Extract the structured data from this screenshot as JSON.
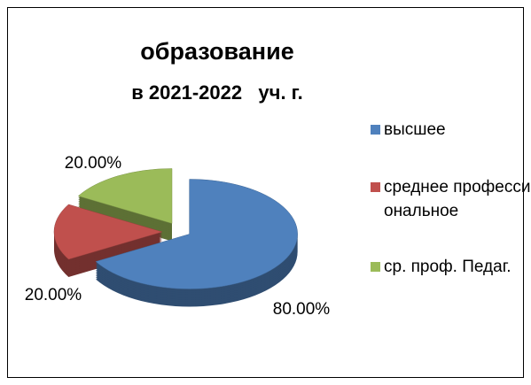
{
  "chart_data": {
    "type": "pie3d",
    "title": "образование",
    "subtitle": "в 2021-2022   уч. г.",
    "series": [
      {
        "name": "высшее",
        "color": "#4f81bd",
        "values": [
          80
        ],
        "value_labels": [
          "80.00%"
        ]
      },
      {
        "name": "среднее профессиональное",
        "color": "#c0504d",
        "values": [
          20
        ],
        "value_labels": [
          "20.00%"
        ]
      },
      {
        "name": "ср. проф. Педаг.",
        "color": "#9bbb59",
        "values": [
          20
        ],
        "value_labels": [
          "20.00%"
        ]
      }
    ],
    "legend": "right"
  }
}
